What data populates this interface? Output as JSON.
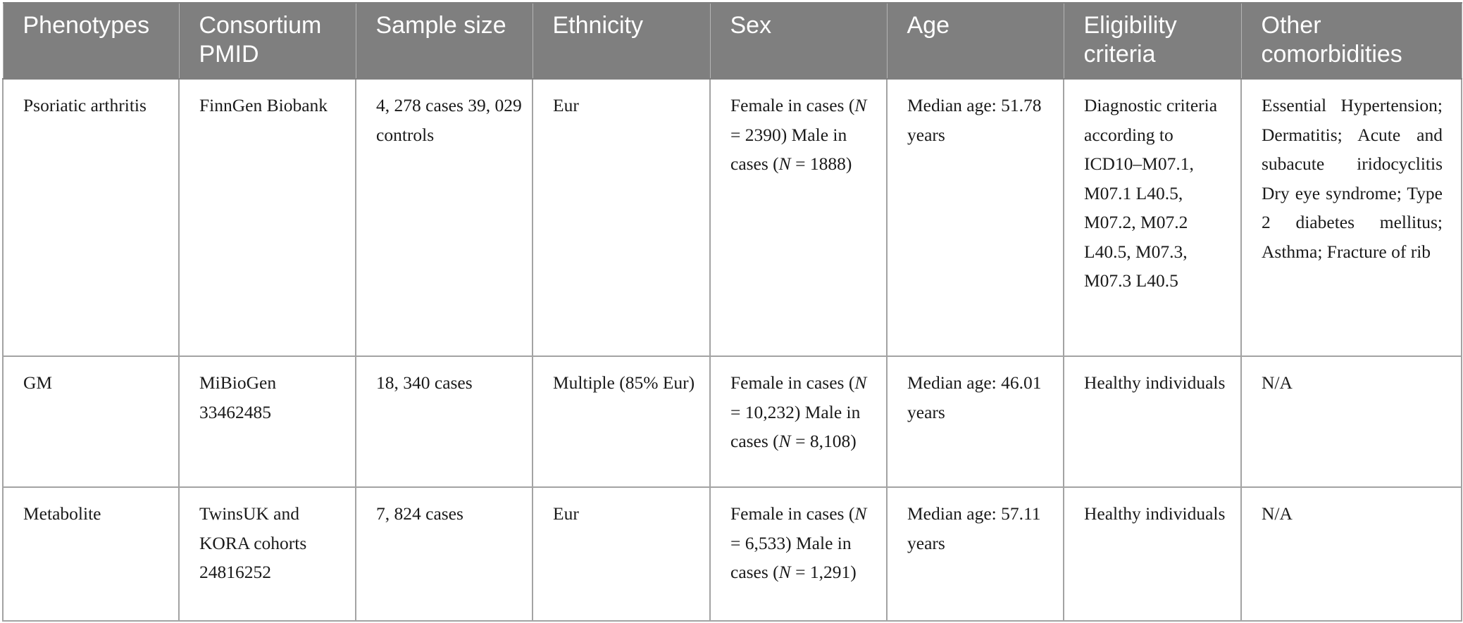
{
  "table": {
    "headers": [
      "Phenotypes",
      "Consortium PMID",
      "Sample size",
      "Ethnicity",
      "Sex",
      "Age",
      "Eligibility criteria",
      "Other comorbidities"
    ],
    "rows": [
      {
        "phenotype": "Psoriatic arthritis",
        "consortium": "FinnGen Biobank",
        "sample_size": "4, 278 cases 39, 029 controls",
        "ethnicity": "Eur",
        "sex": {
          "female_prefix": "Female in cases (",
          "female_n_symbol": "N",
          "female_n_value": " = 2390)",
          "male_prefix": " Male in cases (",
          "male_n_symbol": "N",
          "male_n_value": " = 1888)"
        },
        "age": "Median age: 51.78 years",
        "eligibility": "Diagnostic criteria according to ICD10–M07.1, M07.1 L40.5, M07.2, M07.2 L40.5, M07.3, M07.3 L40.5",
        "comorbidities": "Essential Hypertension; Dermatitis; Acute and subacute iridocyclitis Dry eye syndrome; Type 2 diabetes mellitus; Asthma; Fracture of rib"
      },
      {
        "phenotype": "GM",
        "consortium": "MiBioGen 33462485",
        "sample_size": "18, 340 cases",
        "ethnicity": "Multiple (85% Eur)",
        "sex": {
          "female_prefix": "Female in cases (",
          "female_n_symbol": "N",
          "female_n_value": " = 10,232)",
          "male_prefix": " Male in cases (",
          "male_n_symbol": "N",
          "male_n_value": " = 8,108)"
        },
        "age": "Median age: 46.01 years",
        "eligibility": "Healthy individuals",
        "comorbidities": "N/A"
      },
      {
        "phenotype": "Metabolite",
        "consortium": "TwinsUK and KORA cohorts 24816252",
        "sample_size": "7, 824 cases",
        "ethnicity": "Eur",
        "sex": {
          "female_prefix": "Female in cases (",
          "female_n_symbol": "N",
          "female_n_value": " = 6,533)",
          "male_prefix": " Male in cases (",
          "male_n_symbol": "N",
          "male_n_value": " = 1,291)"
        },
        "age": "Median age: 57.11 years",
        "eligibility": "Healthy individuals",
        "comorbidities": "N/A"
      }
    ]
  },
  "colors": {
    "header_background": "#7f7f7f",
    "header_text": "#ffffff",
    "body_text": "#1a1a1a",
    "grid_line": "#a3a3a3"
  }
}
